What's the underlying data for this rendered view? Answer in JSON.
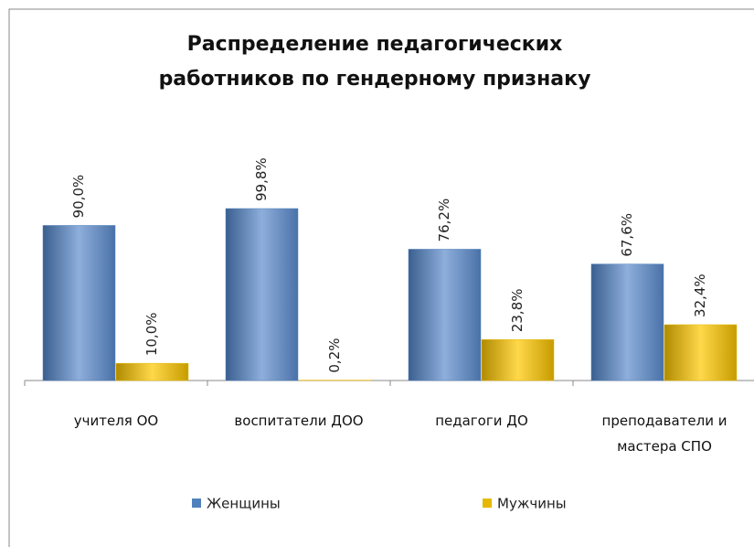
{
  "chart_data": {
    "type": "bar",
    "title": "Распределение педагогических работников по гендерному признаку",
    "categories": [
      "учителя ОО",
      "воспитатели ДОО",
      "педагоги ДО",
      "преподаватели и мастера СПО"
    ],
    "series": [
      {
        "name": "Женщины",
        "color": "#4f81bd",
        "values": [
          90.0,
          99.8,
          76.2,
          67.6
        ],
        "value_labels": [
          "90,0%",
          "99,8%",
          "76,2%",
          "67,6%"
        ]
      },
      {
        "name": "Мужчины",
        "color": "#e6b800",
        "values": [
          10.0,
          0.2,
          23.8,
          32.4
        ],
        "value_labels": [
          "10,0%",
          "0,2%",
          "23,8%",
          "32,4%"
        ]
      }
    ],
    "legend": "bottom"
  }
}
